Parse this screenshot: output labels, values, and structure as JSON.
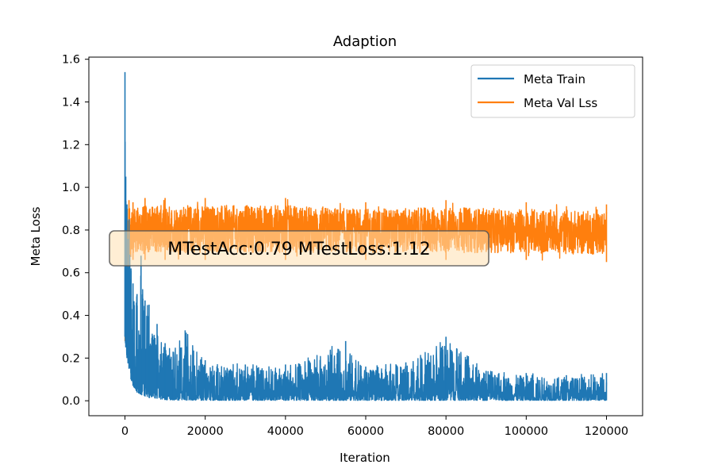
{
  "chart_data": {
    "type": "line",
    "title": "Adaption",
    "xlabel": "Iteration",
    "ylabel": "Meta Loss",
    "xlim": [
      -9000,
      129000
    ],
    "ylim": [
      -0.07,
      1.61
    ],
    "xticks": [
      0,
      20000,
      40000,
      60000,
      80000,
      100000,
      120000
    ],
    "xtick_labels": [
      "0",
      "20000",
      "40000",
      "60000",
      "80000",
      "100000",
      "120000"
    ],
    "yticks": [
      0.0,
      0.2,
      0.4,
      0.6,
      0.8,
      1.0,
      1.2,
      1.4,
      1.6
    ],
    "ytick_labels": [
      "0.0",
      "0.2",
      "0.4",
      "0.6",
      "0.8",
      "1.0",
      "1.2",
      "1.4",
      "1.6"
    ],
    "grid": false,
    "legend_position": "top-right",
    "annotation": {
      "text": "MTestAcc:0.79  MTestLoss:1.12",
      "x": 43000,
      "y": 0.72
    },
    "series": [
      {
        "name": "Meta Train",
        "color": "#1f77b4",
        "envelope_x": [
          0,
          200,
          500,
          1000,
          1500,
          2000,
          3000,
          4000,
          5000,
          6000,
          8000,
          10000,
          12000,
          15000,
          20000,
          30000,
          40000,
          55000,
          60000,
          70000,
          80000,
          90000,
          100000,
          110000,
          120000
        ],
        "envelope_upper": [
          1.54,
          1.05,
          0.92,
          0.85,
          0.62,
          0.55,
          0.5,
          0.68,
          0.47,
          0.45,
          0.36,
          0.27,
          0.23,
          0.33,
          0.19,
          0.17,
          0.17,
          0.28,
          0.16,
          0.18,
          0.3,
          0.14,
          0.13,
          0.12,
          0.13
        ],
        "envelope_lower": [
          0.3,
          0.25,
          0.2,
          0.15,
          0.1,
          0.07,
          0.04,
          0.03,
          0.02,
          0.015,
          0.01,
          0.005,
          0.004,
          0.003,
          0.002,
          0.002,
          0.002,
          0.002,
          0.002,
          0.002,
          0.002,
          0.002,
          0.002,
          0.002,
          0.002
        ]
      },
      {
        "name": "Meta Val Lss",
        "color": "#ff7f0e",
        "envelope_x": [
          0,
          300,
          600,
          1000,
          2000,
          5000,
          10000,
          20000,
          40000,
          60000,
          80000,
          100000,
          120000
        ],
        "envelope_upper": [
          0.28,
          0.78,
          0.9,
          0.94,
          0.93,
          0.95,
          0.95,
          0.95,
          0.95,
          0.93,
          0.94,
          0.93,
          0.92
        ],
        "envelope_lower": [
          0.28,
          0.28,
          0.5,
          0.62,
          0.66,
          0.66,
          0.66,
          0.66,
          0.66,
          0.66,
          0.66,
          0.66,
          0.65
        ]
      }
    ]
  }
}
